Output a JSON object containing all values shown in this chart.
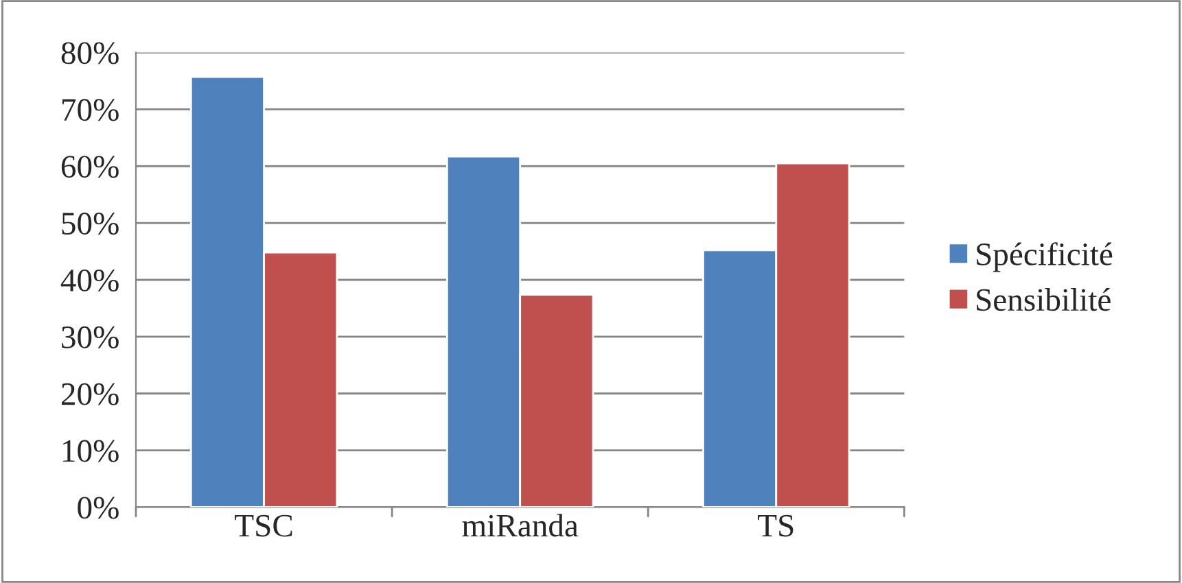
{
  "chart_data": {
    "type": "bar",
    "categories": [
      "TSC",
      "miRanda",
      "TS"
    ],
    "series": [
      {
        "name": "Spécificité",
        "color": "#4f81bd",
        "values": [
          75.7,
          61.7,
          45.2
        ]
      },
      {
        "name": "Sensibilité",
        "color": "#c0504d",
        "values": [
          44.8,
          37.4,
          60.5
        ]
      }
    ],
    "ylim": [
      0,
      80
    ],
    "yticks": [
      {
        "value": 0,
        "label": "0%"
      },
      {
        "value": 10,
        "label": "10%"
      },
      {
        "value": 20,
        "label": "20%"
      },
      {
        "value": 30,
        "label": "30%"
      },
      {
        "value": 40,
        "label": "40%"
      },
      {
        "value": 50,
        "label": "50%"
      },
      {
        "value": 60,
        "label": "60%"
      },
      {
        "value": 70,
        "label": "70%"
      },
      {
        "value": 80,
        "label": "80%"
      }
    ],
    "grid": "y",
    "legend": "right"
  }
}
